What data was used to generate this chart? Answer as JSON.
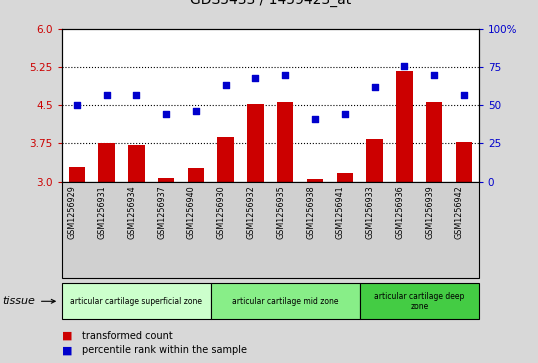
{
  "samples": [
    "GSM1256929",
    "GSM1256931",
    "GSM1256934",
    "GSM1256937",
    "GSM1256940",
    "GSM1256930",
    "GSM1256932",
    "GSM1256935",
    "GSM1256938",
    "GSM1256941",
    "GSM1256933",
    "GSM1256936",
    "GSM1256939",
    "GSM1256942"
  ],
  "transformed_count": [
    3.28,
    3.75,
    3.72,
    3.06,
    3.27,
    3.87,
    4.52,
    4.57,
    3.04,
    3.17,
    3.84,
    5.18,
    4.57,
    3.78
  ],
  "percentile_rank": [
    50,
    57,
    57,
    44,
    46,
    63,
    68,
    70,
    41,
    44,
    62,
    76,
    70,
    57
  ],
  "bar_color": "#cc0000",
  "dot_color": "#0000cc",
  "yticks_left": [
    3.0,
    3.75,
    4.5,
    5.25,
    6.0
  ],
  "yticks_right": [
    0,
    25,
    50,
    75,
    100
  ],
  "ylim_left": [
    3.0,
    6.0
  ],
  "ylim_right": [
    0,
    100
  ],
  "groups": [
    {
      "label": "articular cartilage superficial zone",
      "start": 0,
      "end": 5,
      "color": "#ccffcc"
    },
    {
      "label": "articular cartilage mid zone",
      "start": 5,
      "end": 10,
      "color": "#88ee88"
    },
    {
      "label": "articular cartilage deep\nzone",
      "start": 10,
      "end": 14,
      "color": "#44cc44"
    }
  ],
  "tissue_label": "tissue",
  "legend_bar_label": "transformed count",
  "legend_dot_label": "percentile rank within the sample",
  "bg_color": "#d8d8d8",
  "plot_bg_color": "#ffffff",
  "xtick_bg_color": "#d0d0d0",
  "dotted_line_color": "#555555"
}
